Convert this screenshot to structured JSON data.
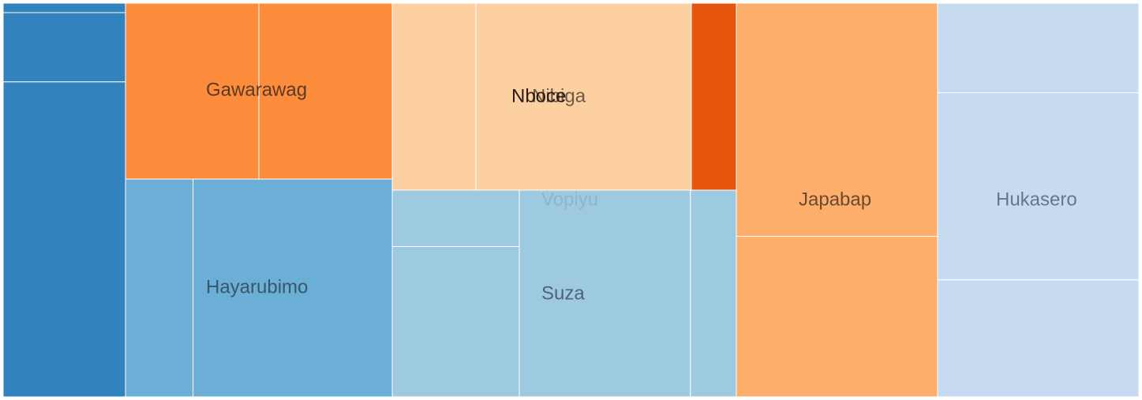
{
  "chart_data": {
    "type": "treemap",
    "groups": [
      {
        "name": "",
        "color": "#3182bd",
        "leaves": [
          3,
          22,
          100
        ]
      },
      {
        "name": "Gawarawag",
        "color": "#fd8d3c",
        "label_color": "#5a3a22",
        "leaves": [
          38,
          38
        ]
      },
      {
        "name": "Hayarubimo",
        "color": "#6baed6",
        "label_color": "#3b566a",
        "leaves": [
          19,
          56
        ]
      },
      {
        "name": "Nibiga",
        "color": "#fdd0a2",
        "label_color": "#6e5a47",
        "leaves": [
          19,
          49
        ]
      },
      {
        "name": "Nboce",
        "color": "#e6550d",
        "label_color": "#2b1a12",
        "leaves": [
          11
        ]
      },
      {
        "name": "Vopiyu",
        "color": "#9ecae1",
        "label_color": "#8fb4cc",
        "leaves": [
          9,
          24
        ]
      },
      {
        "name": "Suza",
        "color": "#9ecae1",
        "label_color": "#4f6473",
        "leaves": [
          41,
          11
        ]
      },
      {
        "name": "Japabap",
        "color": "#fdae6b",
        "label_color": "#6b4a2d",
        "leaves": [
          61,
          42
        ]
      },
      {
        "name": "Hukasero",
        "color": "#c6dbef",
        "label_color": "#6b7683",
        "leaves": [
          23,
          48,
          30
        ]
      }
    ]
  }
}
